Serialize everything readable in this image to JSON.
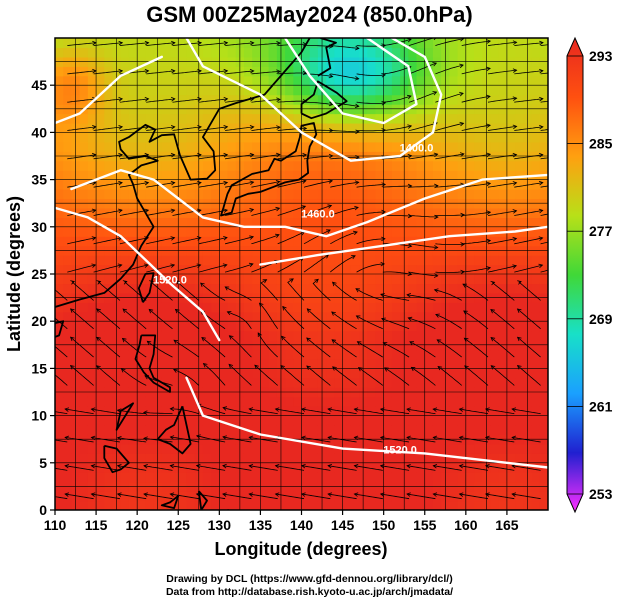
{
  "chart_data": {
    "type": "heatmap",
    "title": "GSM 00Z25May2024 (850.0hPa)",
    "xlabel": "Longitude (degrees)",
    "ylabel": "Latitude  (degrees)",
    "xlim": [
      110,
      170
    ],
    "ylim": [
      0,
      50
    ],
    "x_ticks": [
      "110",
      "115",
      "120",
      "125",
      "130",
      "135",
      "140",
      "145",
      "150",
      "155",
      "160",
      "165"
    ],
    "y_ticks": [
      "0",
      "5",
      "10",
      "15",
      "20",
      "25",
      "30",
      "35",
      "40",
      "45"
    ],
    "colorbar": {
      "min": 253,
      "max": 293,
      "tick_labels": [
        "293",
        "285",
        "277",
        "269",
        "261",
        "253"
      ],
      "colors": [
        "#ff30ff",
        "#2020d0",
        "#1aa0ff",
        "#18e0c8",
        "#40d838",
        "#b8e018",
        "#ffa010",
        "#ff5010",
        "#e82820"
      ]
    },
    "contour_labels": [
      {
        "text": "1400.0",
        "lon": 154,
        "lat": 38
      },
      {
        "text": "1460.0",
        "lon": 142,
        "lat": 31
      },
      {
        "text": "1520.0",
        "lon": 124,
        "lat": 24
      },
      {
        "text": "1520.0",
        "lon": 152,
        "lat": 6
      }
    ],
    "grid": true
  },
  "credits": {
    "line1": "Drawing by DCL (https://www.gfd-dennou.org/library/dcl/)",
    "line2": "Data from http://database.rish.kyoto-u.ac.jp/arch/jmadata/"
  }
}
